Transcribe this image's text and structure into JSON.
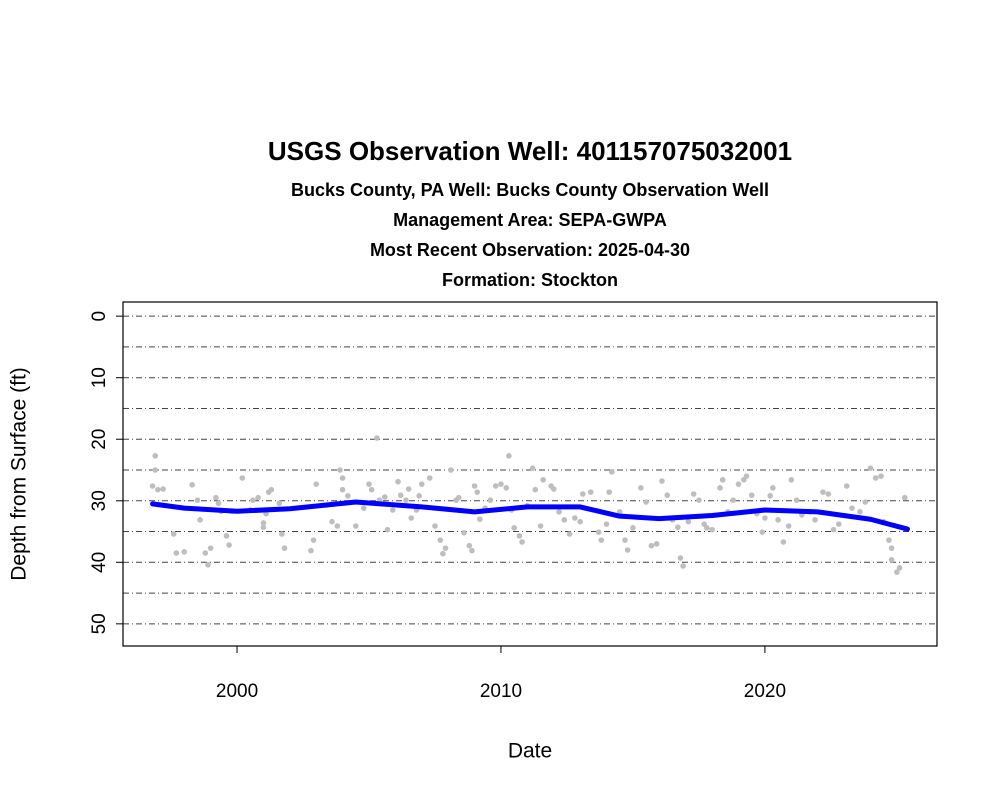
{
  "chart_data": {
    "type": "scatter",
    "title": "USGS Observation Well:  401157075032001",
    "subtitles": [
      "Bucks County, PA   Well: Bucks County Observation Well",
      "Management Area: SEPA-GWPA",
      "Most Recent Observation: 2025-04-30",
      "Formation: Stockton"
    ],
    "xlabel": "Date",
    "ylabel": "Depth from Surface (ft)",
    "xlim": [
      1995.68,
      2026.52
    ],
    "xticks": [
      2000,
      2010,
      2020
    ],
    "ylim": [
      -2.3,
      53.6
    ],
    "invert_y": true,
    "yticks": [
      0,
      10,
      20,
      30,
      40,
      50
    ],
    "grid": true,
    "grid_lines": [
      0,
      5,
      10,
      15,
      20,
      25,
      30,
      35,
      40,
      45,
      50
    ],
    "series": [
      {
        "type": "scatter",
        "color": "#bebebe",
        "x": [
          1996.8,
          1996.9,
          1996.9,
          1997.0,
          1997.2,
          1997.6,
          1997.7,
          1998.0,
          1998.3,
          1998.5,
          1998.6,
          1998.8,
          1998.9,
          1999.0,
          1999.2,
          1999.3,
          1999.4,
          1999.6,
          1999.7,
          1999.8,
          2000.2,
          2000.5,
          2000.6,
          2000.8,
          2001.0,
          2001.0,
          2001.1,
          2001.2,
          2001.3,
          2001.6,
          2001.7,
          2001.8,
          2002.8,
          2002.9,
          2003.0,
          2003.4,
          2003.6,
          2003.8,
          2003.9,
          2004.0,
          2004.0,
          2004.2,
          2004.5,
          2004.8,
          2005.0,
          2005.1,
          2005.3,
          2005.4,
          2005.6,
          2005.7,
          2005.9,
          2006.1,
          2006.2,
          2006.4,
          2006.5,
          2006.6,
          2006.8,
          2006.9,
          2007.0,
          2007.3,
          2007.5,
          2007.7,
          2007.8,
          2007.9,
          2008.1,
          2008.3,
          2008.4,
          2008.6,
          2008.8,
          2008.9,
          2009.0,
          2009.1,
          2009.2,
          2009.4,
          2009.6,
          2009.8,
          2010.0,
          2010.2,
          2010.3,
          2010.4,
          2010.5,
          2010.7,
          2010.8,
          2011.0,
          2011.2,
          2011.3,
          2011.5,
          2011.6,
          2011.9,
          2012.0,
          2012.2,
          2012.4,
          2012.6,
          2012.8,
          2013.0,
          2013.1,
          2013.4,
          2013.7,
          2013.8,
          2014.0,
          2014.1,
          2014.2,
          2014.5,
          2014.7,
          2014.8,
          2015.0,
          2015.3,
          2015.5,
          2015.7,
          2015.9,
          2016.1,
          2016.3,
          2016.5,
          2016.7,
          2016.8,
          2016.9,
          2017.1,
          2017.3,
          2017.5,
          2017.7,
          2017.8,
          2018.0,
          2018.3,
          2018.4,
          2018.6,
          2018.8,
          2019.0,
          2019.2,
          2019.3,
          2019.5,
          2019.7,
          2019.9,
          2020.0,
          2020.2,
          2020.3,
          2020.5,
          2020.7,
          2020.9,
          2021.0,
          2021.2,
          2021.4,
          2021.7,
          2021.9,
          2022.2,
          2022.4,
          2022.6,
          2022.8,
          2023.1,
          2023.3,
          2023.6,
          2023.8,
          2024.0,
          2024.2,
          2024.4,
          2024.5,
          2024.7,
          2024.8,
          2024.8,
          2025.0,
          2025.1,
          2025.3
        ],
        "values": [
          27.6,
          25.0,
          22.7,
          28.2,
          28.1,
          35.4,
          38.5,
          38.3,
          27.4,
          29.9,
          33.1,
          38.5,
          40.4,
          37.7,
          29.5,
          30.4,
          31.7,
          35.7,
          37.2,
          31.7,
          26.3,
          31.5,
          29.9,
          29.5,
          34.3,
          33.6,
          32.1,
          28.6,
          28.2,
          30.4,
          35.4,
          37.7,
          38.1,
          36.4,
          27.3,
          30.7,
          33.4,
          34.1,
          25.0,
          26.3,
          28.2,
          29.2,
          34.1,
          31.2,
          27.3,
          28.2,
          19.8,
          29.9,
          29.4,
          34.7,
          31.5,
          26.9,
          29.1,
          29.9,
          28.1,
          32.8,
          31.5,
          29.2,
          27.3,
          26.3,
          34.1,
          36.4,
          38.6,
          37.7,
          25.0,
          29.9,
          29.5,
          35.2,
          37.3,
          38.1,
          27.6,
          28.6,
          33.0,
          31.2,
          29.9,
          27.6,
          27.3,
          27.9,
          22.7,
          31.5,
          34.4,
          35.7,
          36.7,
          30.8,
          24.7,
          28.2,
          34.1,
          26.6,
          27.6,
          28.1,
          31.8,
          33.1,
          35.4,
          32.8,
          33.4,
          28.9,
          28.6,
          35.1,
          36.4,
          33.8,
          28.6,
          25.3,
          31.8,
          36.4,
          38.0,
          34.4,
          27.9,
          30.2,
          37.3,
          37.0,
          26.8,
          29.1,
          33.1,
          34.3,
          39.3,
          40.6,
          33.4,
          28.9,
          29.9,
          33.8,
          34.4,
          34.7,
          27.9,
          26.6,
          31.8,
          29.9,
          27.3,
          26.6,
          26.0,
          29.1,
          32.1,
          35.1,
          32.8,
          29.2,
          27.9,
          33.1,
          36.7,
          34.1,
          26.6,
          29.9,
          32.3,
          31.8,
          33.1,
          28.6,
          28.9,
          34.7,
          33.8,
          27.6,
          31.2,
          31.8,
          30.2,
          24.7,
          26.3,
          26.0,
          33.4,
          36.4,
          37.7,
          39.6,
          41.6,
          40.9,
          29.5
        ]
      },
      {
        "type": "line",
        "color": "#0000ff",
        "x": [
          1996.8,
          1998,
          2000,
          2002,
          2004.5,
          2007,
          2009,
          2011,
          2013,
          2014.5,
          2016,
          2018,
          2020,
          2022,
          2024,
          2025.4
        ],
        "values": [
          30.5,
          31.2,
          31.7,
          31.3,
          30.2,
          31.0,
          31.8,
          31.0,
          31.0,
          32.5,
          32.9,
          32.4,
          31.5,
          31.8,
          33.0,
          34.6
        ]
      }
    ]
  }
}
